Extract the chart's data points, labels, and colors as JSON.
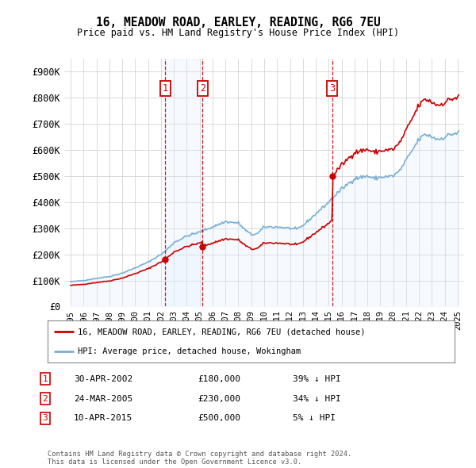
{
  "title": "16, MEADOW ROAD, EARLEY, READING, RG6 7EU",
  "subtitle": "Price paid vs. HM Land Registry's House Price Index (HPI)",
  "background_color": "#ffffff",
  "plot_bg_color": "#ffffff",
  "grid_color": "#cccccc",
  "legend_line1": "16, MEADOW ROAD, EARLEY, READING, RG6 7EU (detached house)",
  "legend_line2": "HPI: Average price, detached house, Wokingham",
  "footer": "Contains HM Land Registry data © Crown copyright and database right 2024.\nThis data is licensed under the Open Government Licence v3.0.",
  "transactions": [
    {
      "num": 1,
      "date": "30-APR-2002",
      "price": 180000,
      "hpi_diff": "39% ↓ HPI",
      "x": 2002.33
    },
    {
      "num": 2,
      "date": "24-MAR-2005",
      "price": 230000,
      "hpi_diff": "34% ↓ HPI",
      "x": 2005.23
    },
    {
      "num": 3,
      "date": "10-APR-2015",
      "price": 500000,
      "hpi_diff": "5% ↓ HPI",
      "x": 2015.28
    }
  ],
  "ylim": [
    0,
    950000
  ],
  "yticks": [
    0,
    100000,
    200000,
    300000,
    400000,
    500000,
    600000,
    700000,
    800000,
    900000
  ],
  "xlim_start": 1994.5,
  "xlim_end": 2025.5,
  "xtick_years": [
    1995,
    1996,
    1997,
    1998,
    1999,
    2000,
    2001,
    2002,
    2003,
    2004,
    2005,
    2006,
    2007,
    2008,
    2009,
    2010,
    2011,
    2012,
    2013,
    2014,
    2015,
    2016,
    2017,
    2018,
    2019,
    2020,
    2021,
    2022,
    2023,
    2024,
    2025
  ],
  "red_color": "#cc0000",
  "blue_color": "#7ab0d4",
  "blue_fill_color": "#ddeeff",
  "shade_color": "#ddeeff",
  "vline_color": "#cc0000",
  "transaction_box_color": "#cc0000"
}
